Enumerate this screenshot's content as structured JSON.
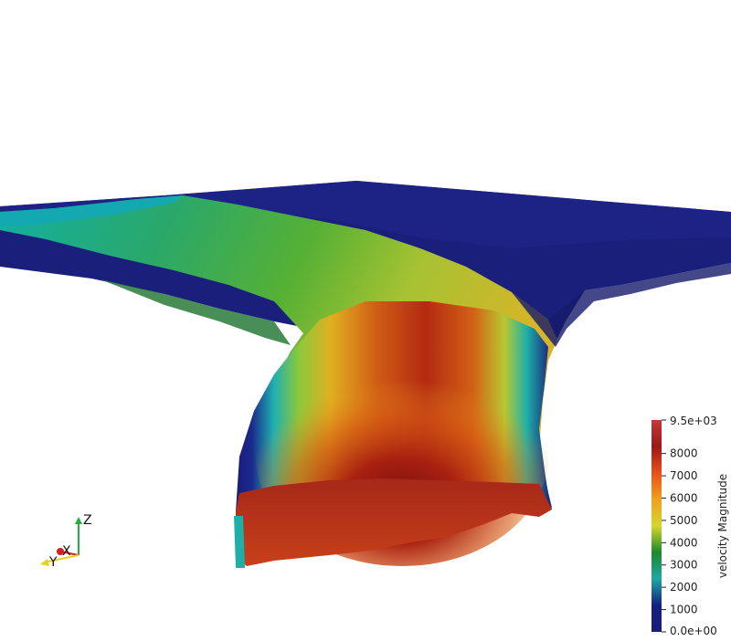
{
  "scalar_bar": {
    "title": "velocity Magnitude",
    "max_label": "9.5e+03",
    "min_label": "0.0e+00",
    "ticks": [
      {
        "value": 8000,
        "label": "8000"
      },
      {
        "value": 7000,
        "label": "7000"
      },
      {
        "value": 6000,
        "label": "6000"
      },
      {
        "value": 5000,
        "label": "5000"
      },
      {
        "value": 4000,
        "label": "4000"
      },
      {
        "value": 3000,
        "label": "3000"
      },
      {
        "value": 2000,
        "label": "2000"
      },
      {
        "value": 1000,
        "label": "1000"
      }
    ],
    "range": [
      0,
      9500
    ],
    "colormap": [
      "#1a1a7a",
      "#15207e",
      "#1ea6a6",
      "#1a8a2a",
      "#d6d62a",
      "#f0a020",
      "#e85018",
      "#9c1818",
      "#c23a3a"
    ]
  },
  "orientation_axes": {
    "x_label": "X",
    "y_label": "Y",
    "z_label": "Z",
    "x_color": "#d62020",
    "y_color": "#e8d020",
    "z_color": "#20b040"
  },
  "colors": {
    "background": "#ffffff",
    "low": "#191970",
    "high": "#8b1010"
  }
}
